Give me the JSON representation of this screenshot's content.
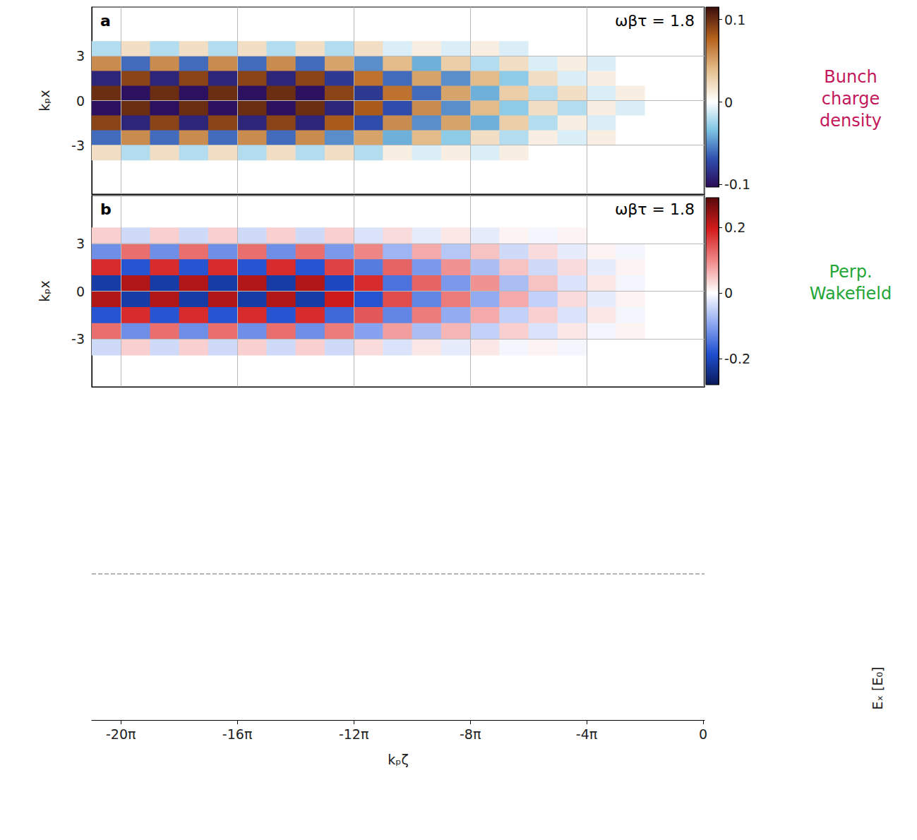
{
  "chart_data": [
    {
      "type": "heatmap",
      "panel_label": "a",
      "annotation": "ωβτ = 1.8",
      "side_label": {
        "text": "Bunch charge density",
        "color": "#c2185b"
      },
      "ylabel": "kₚx",
      "xlim": [
        -65.97,
        0.15
      ],
      "ylim": [
        -6.3,
        6.3
      ],
      "xticks": [
        -62.83,
        -50.27,
        -37.7,
        -25.13,
        -12.57,
        0
      ],
      "yticks": [
        -3,
        0,
        3
      ],
      "tick_labels": "y",
      "grid": true,
      "x": [
        -64.4,
        -61.26,
        -58.12,
        -54.98,
        -51.84,
        -48.69,
        -45.55,
        -42.41,
        -39.27,
        -36.13,
        -32.99,
        -29.85,
        -26.7,
        -23.56,
        -20.42,
        -17.28,
        -14.14,
        -11.0,
        -7.85,
        -4.71,
        -1.57
      ],
      "y": [
        3.5,
        2.5,
        1.5,
        0.5,
        -0.5,
        -1.5,
        -2.5,
        -3.5
      ],
      "cells": [
        [
          -0.02,
          0.02,
          -0.02,
          0.02,
          -0.02,
          0.02,
          -0.02,
          0.02,
          -0.02,
          0.02,
          -0.01,
          0.01,
          -0.01,
          0.01,
          -0.01,
          0,
          0,
          0,
          0,
          0,
          0
        ],
        [
          0.06,
          -0.06,
          0.06,
          -0.06,
          0.06,
          -0.06,
          0.06,
          -0.06,
          0.05,
          -0.05,
          0.04,
          -0.04,
          0.03,
          -0.02,
          0.02,
          -0.01,
          0.01,
          -0.01,
          0,
          0,
          0
        ],
        [
          -0.09,
          0.09,
          -0.09,
          0.09,
          -0.09,
          0.09,
          -0.09,
          0.09,
          -0.08,
          0.07,
          -0.06,
          0.05,
          -0.05,
          0.04,
          -0.03,
          0.02,
          -0.01,
          0.01,
          0,
          0,
          0
        ],
        [
          0.1,
          -0.1,
          0.1,
          -0.1,
          0.1,
          -0.1,
          0.1,
          -0.1,
          0.09,
          -0.08,
          0.07,
          -0.06,
          0.05,
          -0.04,
          0.03,
          -0.02,
          0.02,
          -0.01,
          0.01,
          0,
          0
        ],
        [
          -0.1,
          0.1,
          -0.1,
          0.1,
          -0.1,
          0.1,
          -0.1,
          0.1,
          -0.09,
          0.08,
          -0.07,
          0.06,
          -0.05,
          0.04,
          -0.03,
          0.02,
          -0.02,
          0.01,
          -0.01,
          0,
          0
        ],
        [
          0.09,
          -0.09,
          0.09,
          -0.09,
          0.09,
          -0.09,
          0.09,
          -0.09,
          0.08,
          -0.07,
          0.06,
          -0.05,
          0.05,
          -0.04,
          0.03,
          -0.02,
          0.01,
          -0.01,
          0,
          0,
          0
        ],
        [
          -0.06,
          0.06,
          -0.06,
          0.06,
          -0.06,
          0.06,
          -0.06,
          0.06,
          -0.05,
          0.05,
          -0.04,
          0.04,
          -0.03,
          0.02,
          -0.02,
          0.01,
          -0.01,
          0.01,
          0,
          0,
          0
        ],
        [
          0.02,
          -0.02,
          0.02,
          -0.02,
          0.02,
          -0.02,
          0.02,
          -0.02,
          0.02,
          -0.02,
          0.01,
          -0.01,
          0.01,
          -0.01,
          0.01,
          0,
          0,
          0,
          0,
          0,
          0
        ]
      ],
      "colorbar": {
        "range": [
          -0.103,
          0.115
        ],
        "ticks": [
          -0.1,
          0,
          0.1
        ]
      }
    },
    {
      "type": "heatmap",
      "panel_label": "b",
      "annotation": "ωβτ = 1.8",
      "side_label": {
        "text": "Perp. Wakefield",
        "color": "#22a637"
      },
      "ylabel": "kₚx",
      "xlim": [
        -65.97,
        0.15
      ],
      "ylim": [
        -6,
        6
      ],
      "xticks": [
        -62.83,
        -50.27,
        -37.7,
        -25.13,
        -12.57,
        0
      ],
      "yticks": [
        -3,
        0,
        3
      ],
      "tick_labels": "y",
      "grid": true,
      "x": [
        -64.4,
        -61.26,
        -58.12,
        -54.98,
        -51.84,
        -48.69,
        -45.55,
        -42.41,
        -39.27,
        -36.13,
        -32.99,
        -29.85,
        -26.7,
        -23.56,
        -20.42,
        -17.28,
        -14.14,
        -11.0,
        -7.85,
        -4.71,
        -1.57
      ],
      "y": [
        3.5,
        2.5,
        1.5,
        0.5,
        -0.5,
        -1.5,
        -2.5,
        -3.5
      ],
      "cells": [
        [
          0.04,
          -0.04,
          0.04,
          -0.04,
          0.04,
          -0.04,
          0.04,
          -0.04,
          0.04,
          -0.03,
          0.03,
          -0.02,
          0.02,
          -0.02,
          0.01,
          -0.01,
          0.01,
          0,
          0,
          0,
          0
        ],
        [
          -0.12,
          0.12,
          -0.12,
          0.12,
          -0.12,
          0.12,
          -0.12,
          0.12,
          -0.11,
          0.1,
          -0.08,
          0.07,
          -0.06,
          0.05,
          -0.04,
          0.03,
          -0.02,
          0.01,
          -0.01,
          0,
          0
        ],
        [
          0.18,
          -0.18,
          0.18,
          -0.18,
          0.18,
          -0.18,
          0.18,
          -0.18,
          0.16,
          -0.14,
          0.13,
          -0.11,
          0.09,
          -0.07,
          0.05,
          -0.04,
          0.03,
          -0.02,
          0.01,
          0,
          0
        ],
        [
          -0.22,
          0.22,
          -0.22,
          0.22,
          -0.22,
          0.22,
          -0.22,
          0.22,
          -0.2,
          0.18,
          -0.15,
          0.13,
          -0.11,
          0.09,
          -0.07,
          0.05,
          -0.03,
          0.02,
          -0.01,
          0,
          0
        ],
        [
          0.22,
          -0.22,
          0.22,
          -0.22,
          0.22,
          -0.22,
          0.22,
          -0.22,
          0.2,
          -0.18,
          0.15,
          -0.13,
          0.11,
          -0.09,
          0.07,
          -0.05,
          0.03,
          -0.02,
          0.01,
          0,
          0
        ],
        [
          -0.18,
          0.18,
          -0.18,
          0.18,
          -0.18,
          0.18,
          -0.18,
          0.18,
          -0.16,
          0.14,
          -0.13,
          0.11,
          -0.09,
          0.07,
          -0.05,
          0.04,
          -0.03,
          0.02,
          -0.01,
          0,
          0
        ],
        [
          0.12,
          -0.12,
          0.12,
          -0.12,
          0.12,
          -0.12,
          0.12,
          -0.12,
          0.11,
          -0.1,
          0.08,
          -0.07,
          0.06,
          -0.05,
          0.04,
          -0.03,
          0.02,
          -0.01,
          0.01,
          0,
          0
        ],
        [
          -0.04,
          0.04,
          -0.04,
          0.04,
          -0.04,
          0.04,
          -0.04,
          0.04,
          -0.04,
          0.03,
          -0.03,
          0.02,
          -0.02,
          0.02,
          -0.01,
          0.01,
          -0.01,
          0,
          0,
          0,
          0
        ]
      ],
      "colorbar": {
        "range": [
          -0.28,
          0.29
        ],
        "ticks": [
          -0.2,
          0,
          0.2
        ]
      }
    },
    {
      "type": "line",
      "xlabel": "kₚζ",
      "colorbar_label": "Eₓ [E₀]",
      "x": [
        -65.97,
        0.15
      ],
      "values": [
        0,
        0
      ],
      "color": "#9a9a9a",
      "line_style": "dashed",
      "xlim": [
        -65.97,
        0.15
      ],
      "ylim": [
        -0.9,
        1.1
      ],
      "xticks": [
        {
          "value": -62.83,
          "label": "-20π"
        },
        {
          "value": -50.27,
          "label": "-16π"
        },
        {
          "value": -37.7,
          "label": "-12π"
        },
        {
          "value": -25.13,
          "label": "-8π"
        },
        {
          "value": -12.57,
          "label": "-4π"
        },
        0
      ],
      "tick_labels": "x"
    }
  ]
}
